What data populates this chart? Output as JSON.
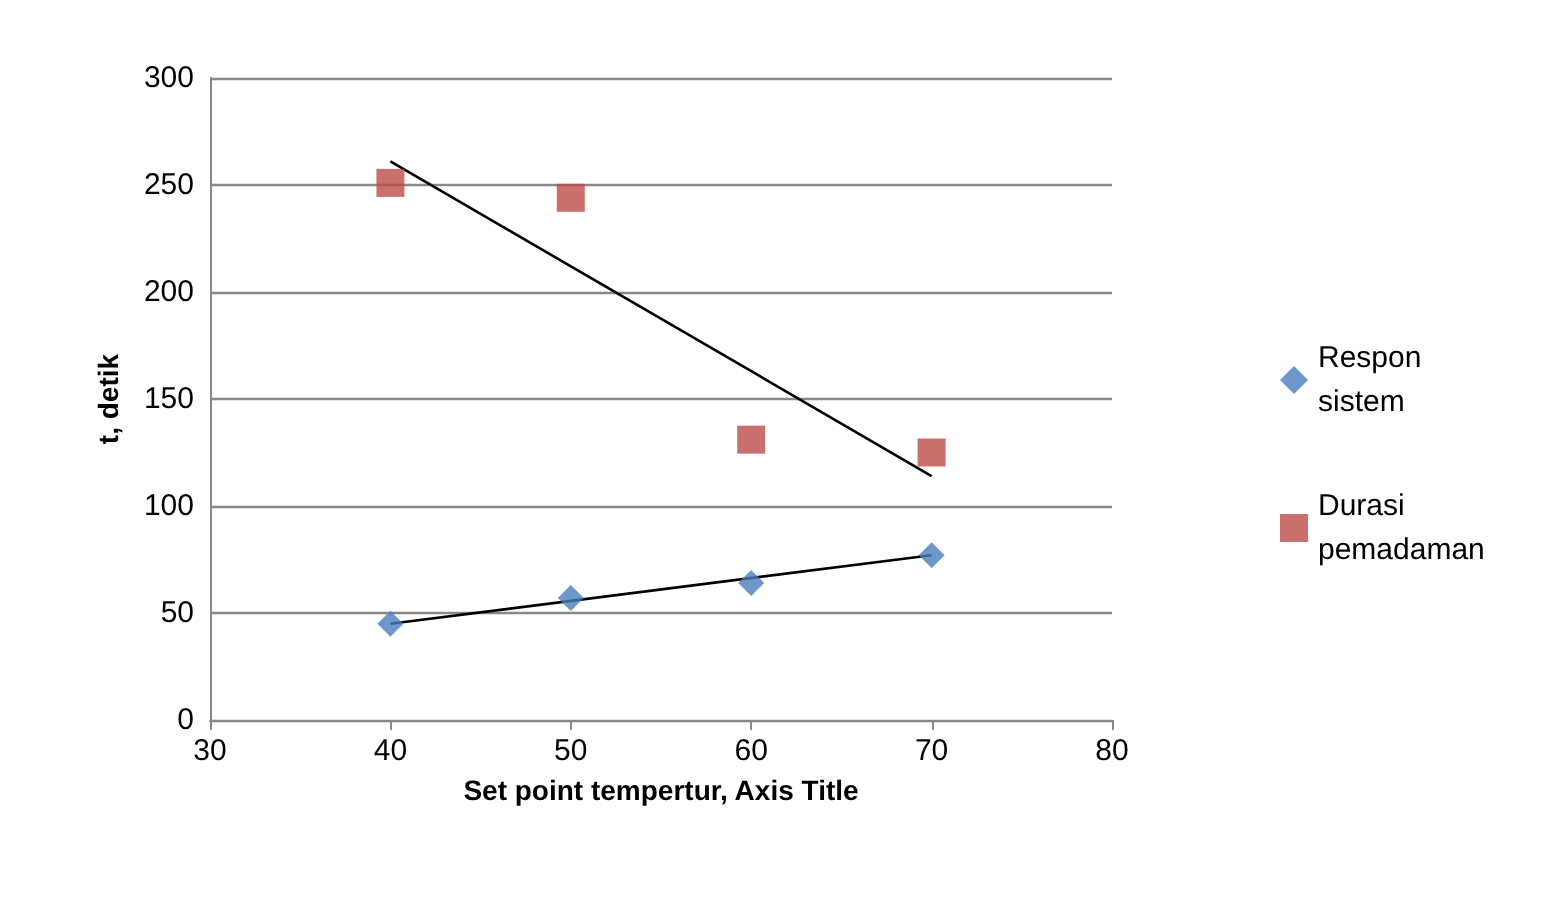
{
  "chart_data": {
    "type": "scatter",
    "xlabel": "Set point tempertur, Axis Title",
    "ylabel": "t, detik",
    "xlim": [
      30,
      80
    ],
    "xticks": [
      30,
      40,
      50,
      60,
      70,
      80
    ],
    "ylim": [
      0,
      300
    ],
    "yticks": [
      0,
      50,
      100,
      150,
      200,
      250,
      300
    ],
    "grid": "y",
    "legend": "right",
    "series": [
      {
        "name": "Respon sistem",
        "marker": "diamond",
        "color": "#4a7ebb",
        "x": [
          40,
          50,
          60,
          70
        ],
        "values": [
          45,
          57,
          64,
          77
        ]
      },
      {
        "name": "Durasi pemadaman",
        "marker": "square",
        "color": "#be4b48",
        "x": [
          40,
          50,
          60,
          70
        ],
        "values": [
          251,
          244,
          131,
          125
        ]
      },
      {
        "type": "line",
        "marker": "none",
        "color": "#000000",
        "x": [
          40,
          70
        ],
        "values": [
          261,
          114
        ]
      },
      {
        "type": "line",
        "marker": "none",
        "color": "#000000",
        "x": [
          40,
          70
        ],
        "values": [
          45,
          77
        ]
      }
    ]
  }
}
